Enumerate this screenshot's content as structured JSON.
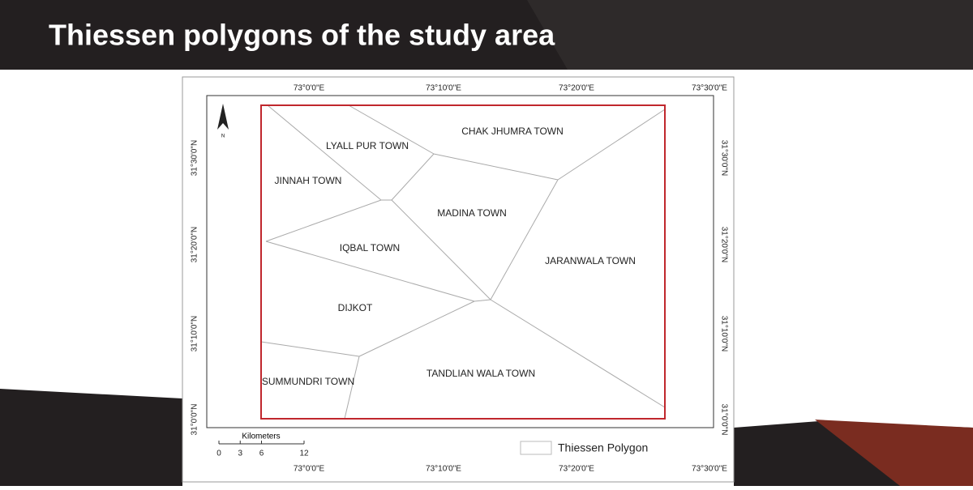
{
  "header": {
    "title": "Thiessen polygons of the study area"
  },
  "map": {
    "longitude_labels": [
      "73°0'0\"E",
      "73°10'0\"E",
      "73°20'0\"E",
      "73°30'0\"E"
    ],
    "latitude_labels": [
      "31°30'0\"N",
      "31°20'0\"N",
      "31°10'0\"N",
      "31°0'0\"N"
    ],
    "regions": [
      "CHAK JHUMRA TOWN",
      "LYALL PUR TOWN",
      "JINNAH TOWN",
      "MADINA TOWN",
      "IQBAL TOWN",
      "JARANWALA TOWN",
      "DIJKOT",
      "TANDLIAN WALA TOWN",
      "SUMMUNDRI TOWN"
    ],
    "scale_bar": {
      "unit": "Kilometers",
      "ticks": [
        0,
        3,
        6,
        12
      ]
    },
    "legend": {
      "label": "Thiessen Polygon"
    }
  }
}
